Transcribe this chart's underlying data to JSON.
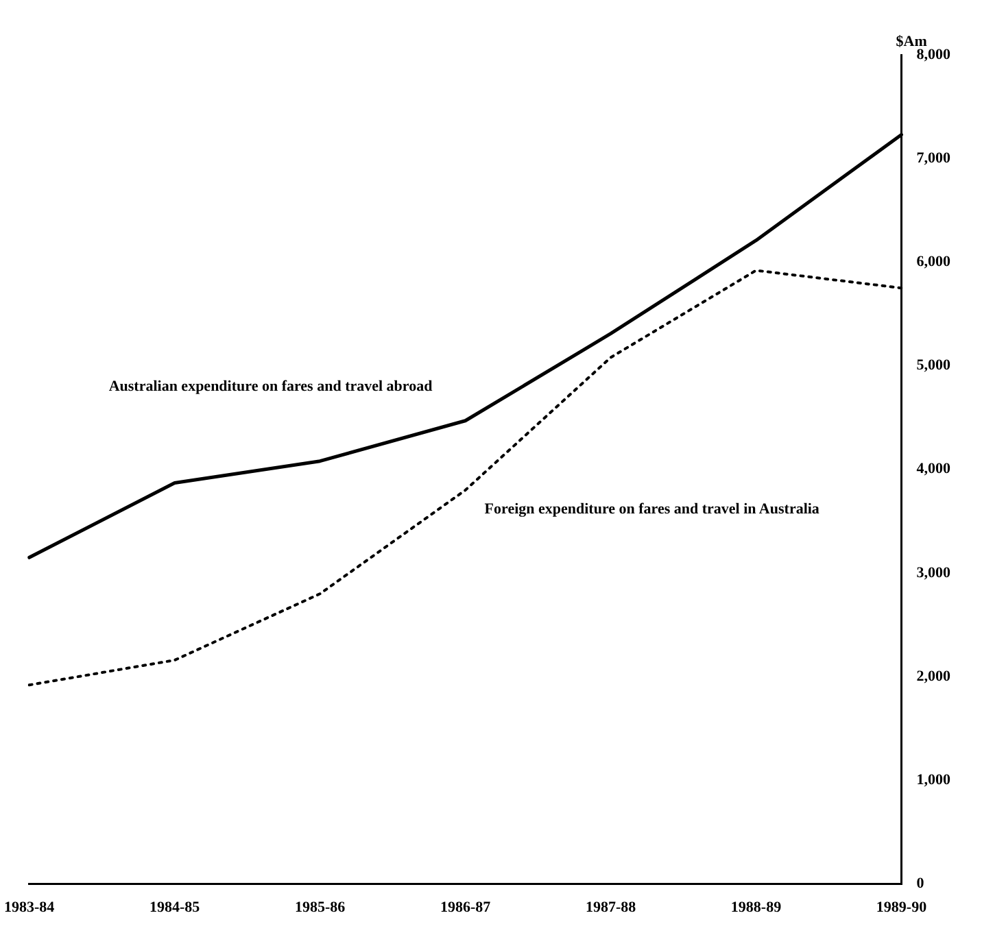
{
  "chart_data": {
    "type": "line",
    "ylabel": "$Am",
    "categories": [
      "1983-84",
      "1984-85",
      "1985-86",
      "1986-87",
      "1987-88",
      "1988-89",
      "1989-90"
    ],
    "series": [
      {
        "name": "Australian expenditure on fares and travel abroad",
        "color": "#000000",
        "line_style": "solid",
        "values": [
          3150,
          3870,
          4080,
          4470,
          5310,
          6210,
          7230
        ]
      },
      {
        "name": "Foreign expenditure on fares and travel in Australia",
        "color": "#000000",
        "line_style": "dotted",
        "values": [
          1920,
          2160,
          2800,
          3800,
          5080,
          5920,
          5750
        ]
      }
    ],
    "ylim": [
      0,
      8000
    ],
    "yticks": [
      {
        "value": 0,
        "label": "0"
      },
      {
        "value": 1000,
        "label": "1,000"
      },
      {
        "value": 2000,
        "label": "2,000"
      },
      {
        "value": 3000,
        "label": "3,000"
      },
      {
        "value": 4000,
        "label": "4,000"
      },
      {
        "value": 5000,
        "label": "5,000"
      },
      {
        "value": 6000,
        "label": "6,000"
      },
      {
        "value": 7000,
        "label": "7,000"
      },
      {
        "value": 8000,
        "label": "8,000"
      }
    ],
    "grid": false,
    "legend": false,
    "marker": "none"
  }
}
